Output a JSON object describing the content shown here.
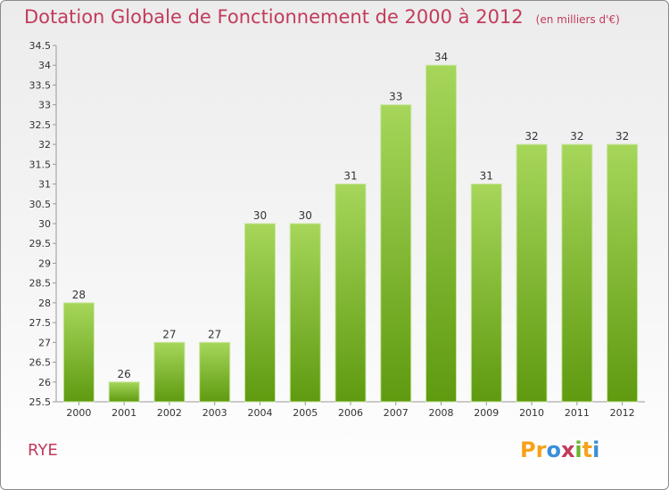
{
  "title": "Dotation Globale de Fonctionnement de 2000 à 2012",
  "subtitle": "(en milliers d'€)",
  "place": "RYE",
  "logo": {
    "letters": [
      "P",
      "r",
      "o",
      "x",
      "i",
      "t",
      "i"
    ],
    "colors": [
      "#f7a21b",
      "#f7a21b",
      "#3a8fd8",
      "#c23b5a",
      "#6bb52b",
      "#f7a21b",
      "#3a8fd8"
    ]
  },
  "colors": {
    "bar_light": "#a6d65a",
    "bar_dark": "#5f9a10",
    "title": "#c23b5a"
  },
  "chart_data": {
    "type": "bar",
    "categories": [
      "2000",
      "2001",
      "2002",
      "2003",
      "2004",
      "2005",
      "2006",
      "2007",
      "2008",
      "2009",
      "2010",
      "2011",
      "2012"
    ],
    "values": [
      28,
      26,
      27,
      27,
      30,
      30,
      31,
      33,
      34,
      31,
      32,
      32,
      32
    ],
    "value_labels": [
      "28",
      "26",
      "27",
      "27",
      "30",
      "30",
      "31",
      "33",
      "34",
      "31",
      "32",
      "32",
      "32"
    ],
    "ylim": [
      25.5,
      34.5
    ],
    "yticks": [
      "25.5",
      "26",
      "26.5",
      "27",
      "27.5",
      "28",
      "28.5",
      "29",
      "29.5",
      "30",
      "30.5",
      "31",
      "31.5",
      "32",
      "32.5",
      "33",
      "33.5",
      "34",
      "34.5"
    ],
    "grid": false
  }
}
